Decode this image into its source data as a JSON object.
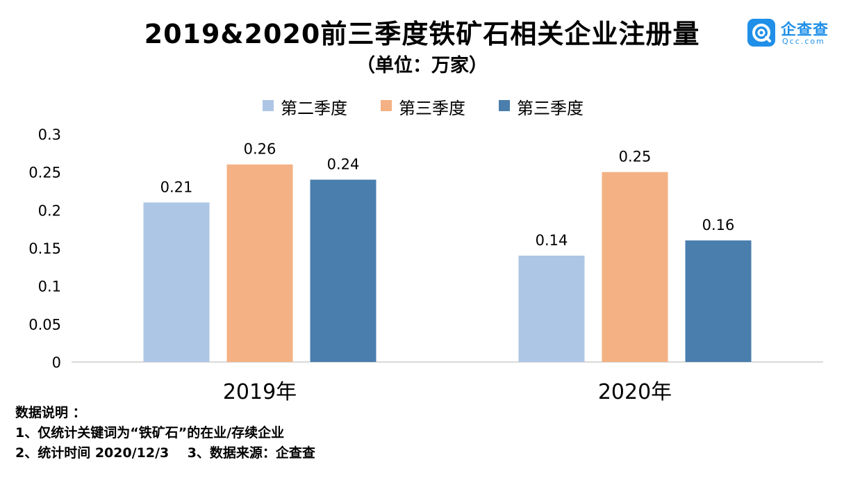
{
  "title": "2019&2020前三季度铁矿石相关企业注册量",
  "subtitle": "（单位：万家）",
  "logo": {
    "name": "企查查",
    "domain": "Qcc.com",
    "icon": "qcc-logo-icon"
  },
  "colors": {
    "q2": "#adc6e5",
    "q3a": "#f4b183",
    "q3b": "#4a7ead",
    "axis": "#d9d9d9"
  },
  "chart_data": {
    "type": "bar",
    "categories": [
      "2019年",
      "2020年"
    ],
    "series": [
      {
        "name": "第二季度",
        "values": [
          0.21,
          0.14
        ]
      },
      {
        "name": "第三季度",
        "values": [
          0.26,
          0.25
        ]
      },
      {
        "name": "第三季度",
        "values": [
          0.24,
          0.16
        ]
      }
    ],
    "data_labels": [
      [
        "0.21",
        "0.14"
      ],
      [
        "0.26",
        "0.25"
      ],
      [
        "0.24",
        "0.16"
      ]
    ],
    "ylim": [
      0,
      0.3
    ],
    "yticks": [
      "0",
      "0.05",
      "0.1",
      "0.15",
      "0.2",
      "0.25",
      "0.3"
    ],
    "xlabel": "",
    "ylabel": "",
    "legend": "top-center",
    "grid": false
  },
  "notes": {
    "heading": "数据说明 ：",
    "line1": "1、仅统计关键词为“铁矿石”的在业/存续企业",
    "line2": "2、统计时间 2020/12/3    3、数据来源：企查查"
  }
}
